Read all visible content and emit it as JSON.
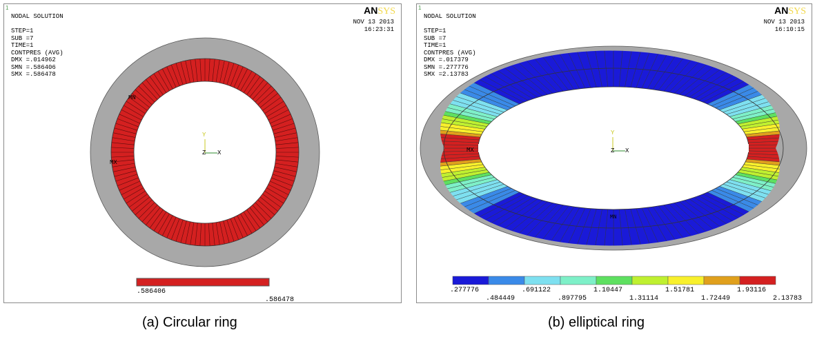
{
  "panel_a": {
    "corner_marker": "1",
    "info_lines": [
      "NODAL SOLUTION",
      "",
      "STEP=1",
      "SUB =7",
      "TIME=1",
      "CONTPRES (AVG)",
      "DMX =.014962",
      "SMN =.586406",
      "SMX =.586478"
    ],
    "date": "NOV 13 2013",
    "time": "16:23:31",
    "logo_an": "AN",
    "logo_sys": "SYS",
    "mn_label": "MN",
    "mx_label": "MX",
    "axis_y": "Y",
    "axis_z": "Z",
    "axis_x": "X",
    "legend_colors": [
      "#d42020"
    ],
    "legend_values": [
      ".586406",
      ".586478"
    ],
    "caption": "(a) Circular ring"
  },
  "panel_b": {
    "corner_marker": "1",
    "info_lines": [
      "NODAL SOLUTION",
      "",
      "STEP=1",
      "SUB =7",
      "TIME=1",
      "CONTPRES (AVG)",
      "DMX =.017379",
      "SMN =.277776",
      "SMX =2.13783"
    ],
    "date": "NOV 13 2013",
    "time": "16:10:15",
    "logo_an": "AN",
    "logo_sys": "SYS",
    "mn_label": "MN",
    "mx_label": "MX",
    "axis_y": "Y",
    "axis_z": "Z",
    "axis_x": "X",
    "legend_colors": [
      "#1a1ad8",
      "#3a8ae8",
      "#7ee0f0",
      "#7ef0c8",
      "#5ee060",
      "#bff030",
      "#f8f02c",
      "#e0a01c",
      "#d42020"
    ],
    "legend_values": [
      ".277776",
      ".484449",
      ".691122",
      ".897795",
      "1.10447",
      "1.31114",
      "1.51781",
      "1.72449",
      "1.93116",
      "2.13783"
    ],
    "caption": "(b) elliptical ring"
  },
  "colors": {
    "gray_ring": "#a8a8a8",
    "contact_red": "#d42020",
    "contact_blue": "#1a1ad8"
  }
}
